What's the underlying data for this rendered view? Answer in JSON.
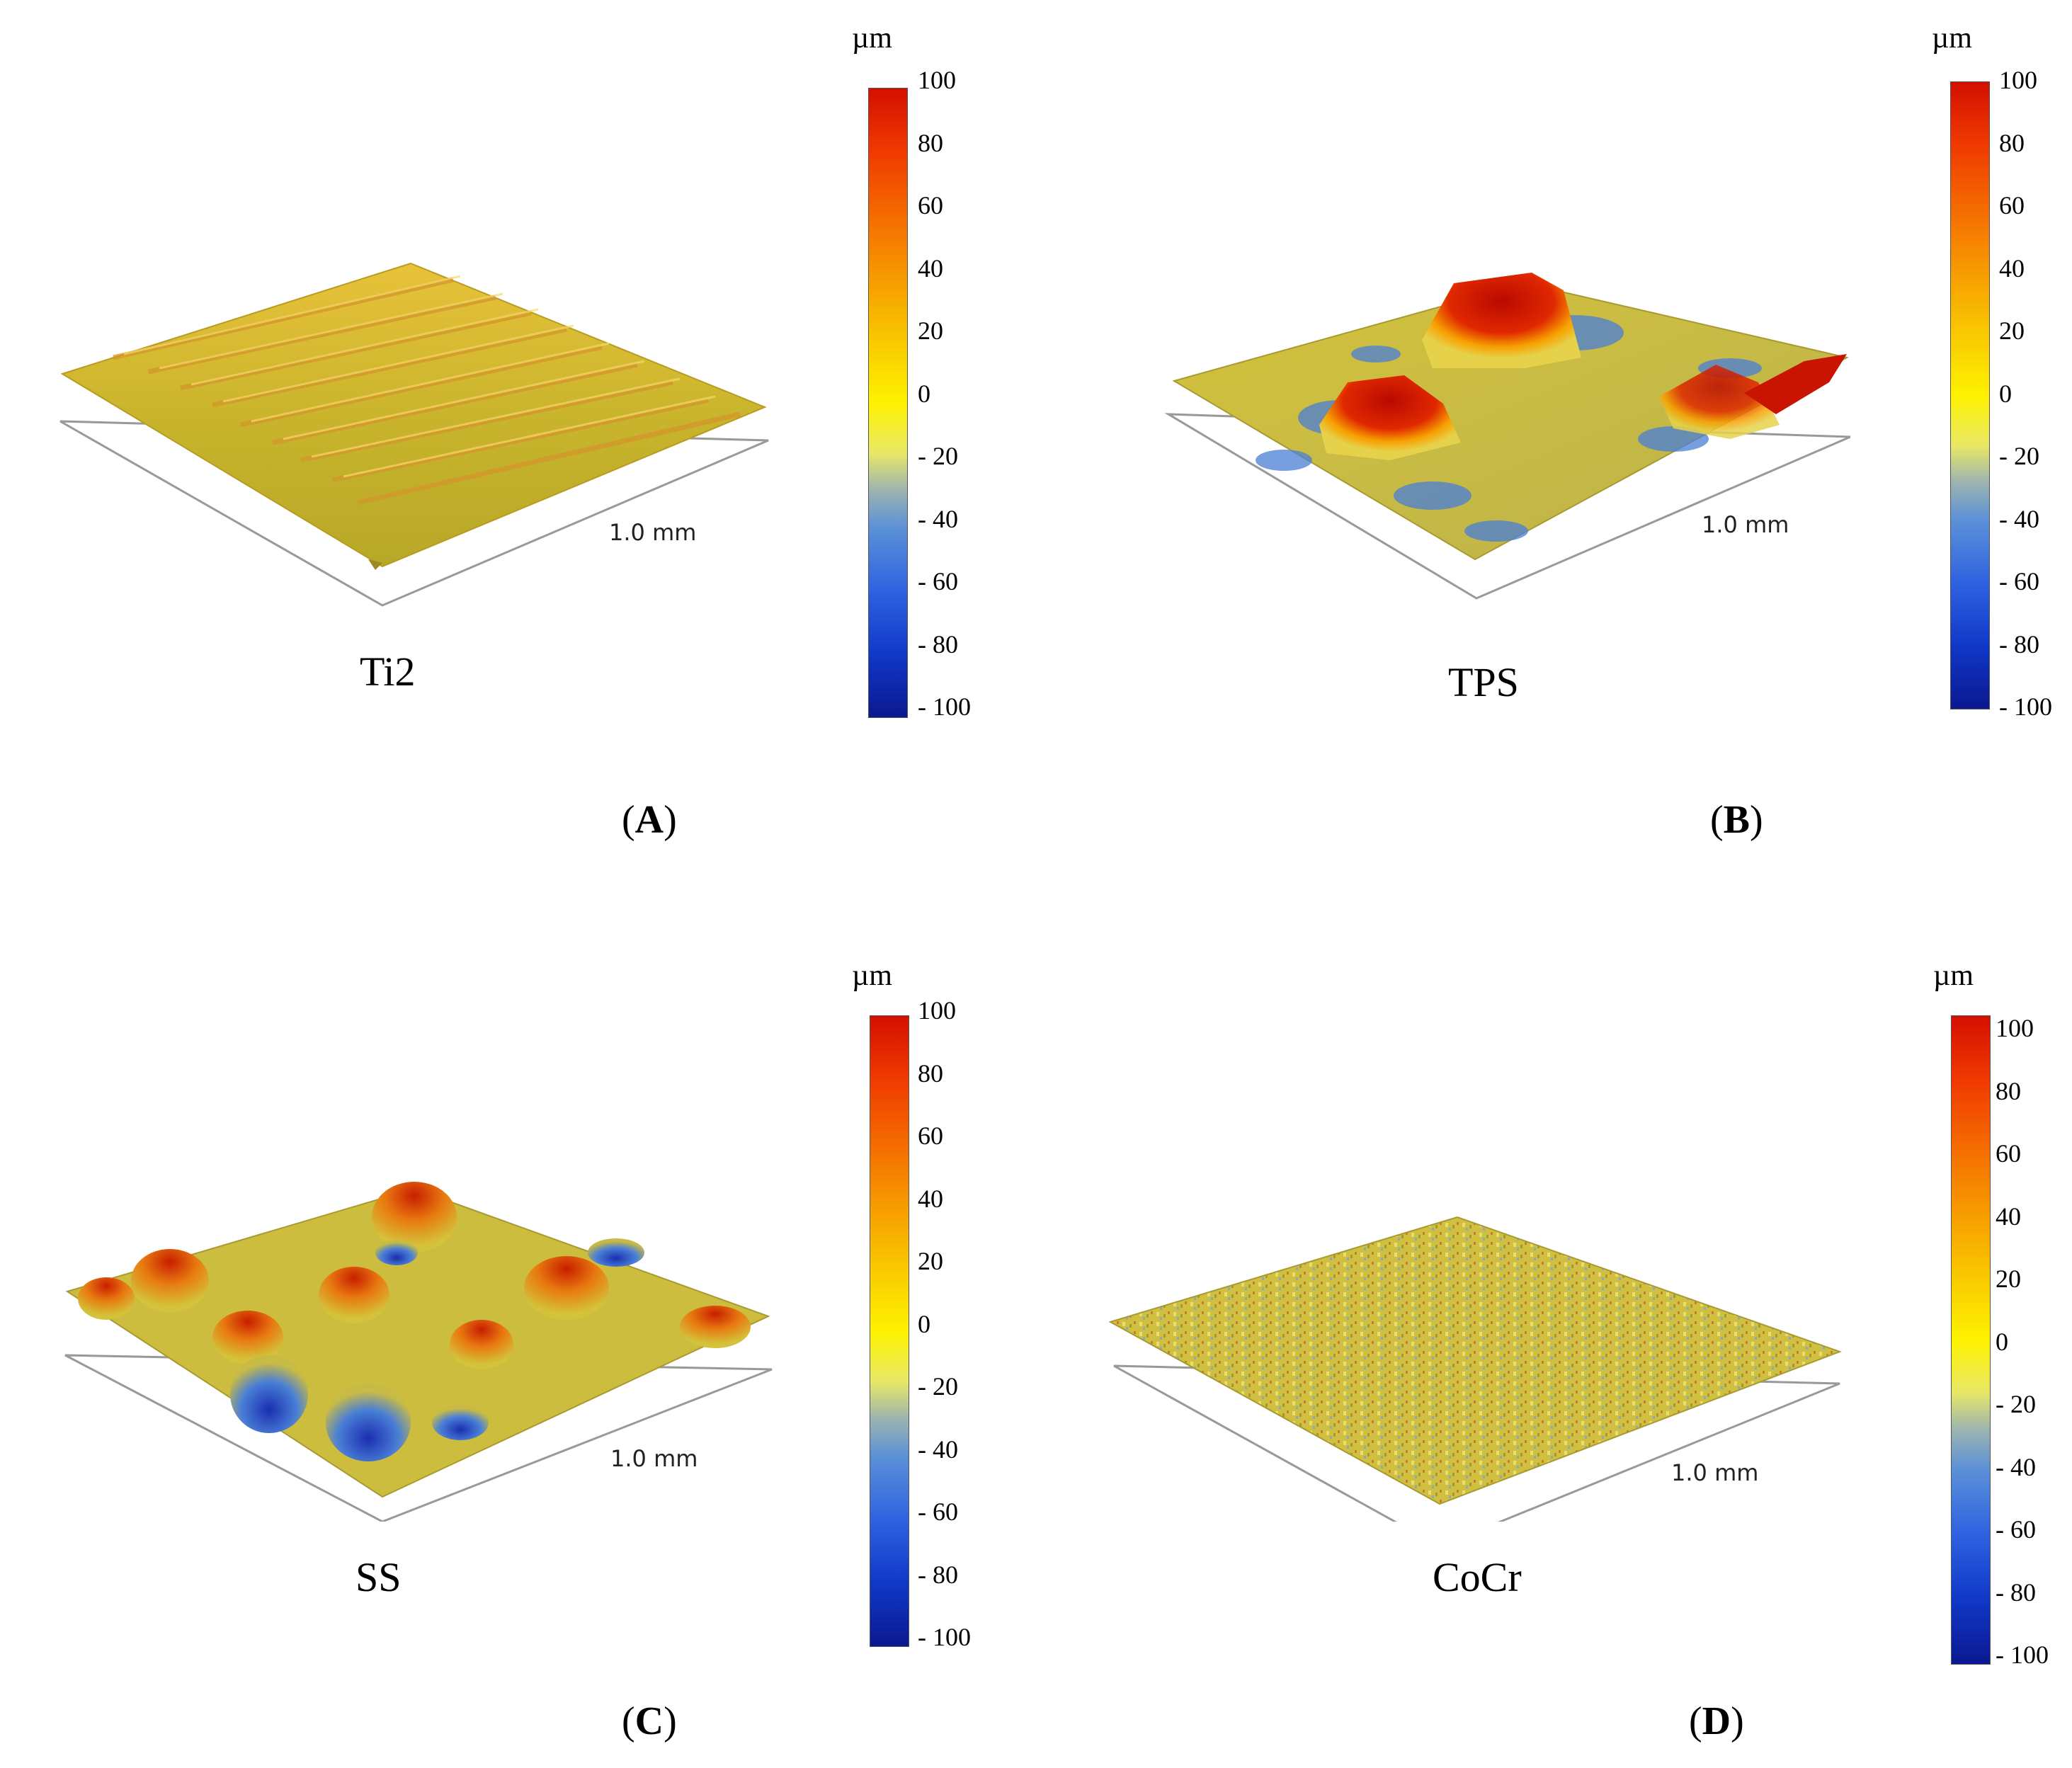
{
  "figure": {
    "colorbar_unit": "µm",
    "colorbar_ticks": [
      "100",
      "80",
      "60",
      "40",
      "20",
      "0",
      "- 20",
      "- 40",
      "- 60",
      "- 80",
      "- 100"
    ],
    "scale_bar": "1.0 mm",
    "colormap": [
      "#d40f00",
      "#f79a00",
      "#fef200",
      "#5b90d8",
      "#0b1890"
    ],
    "panels": [
      {
        "id": "A",
        "sample": "Ti2",
        "open": "(",
        "close": ")"
      },
      {
        "id": "B",
        "sample": "TPS",
        "open": "(",
        "close": ")"
      },
      {
        "id": "C",
        "sample": "SS",
        "open": "(",
        "close": ")"
      },
      {
        "id": "D",
        "sample": "CoCr",
        "open": "(",
        "close": ")"
      }
    ]
  }
}
